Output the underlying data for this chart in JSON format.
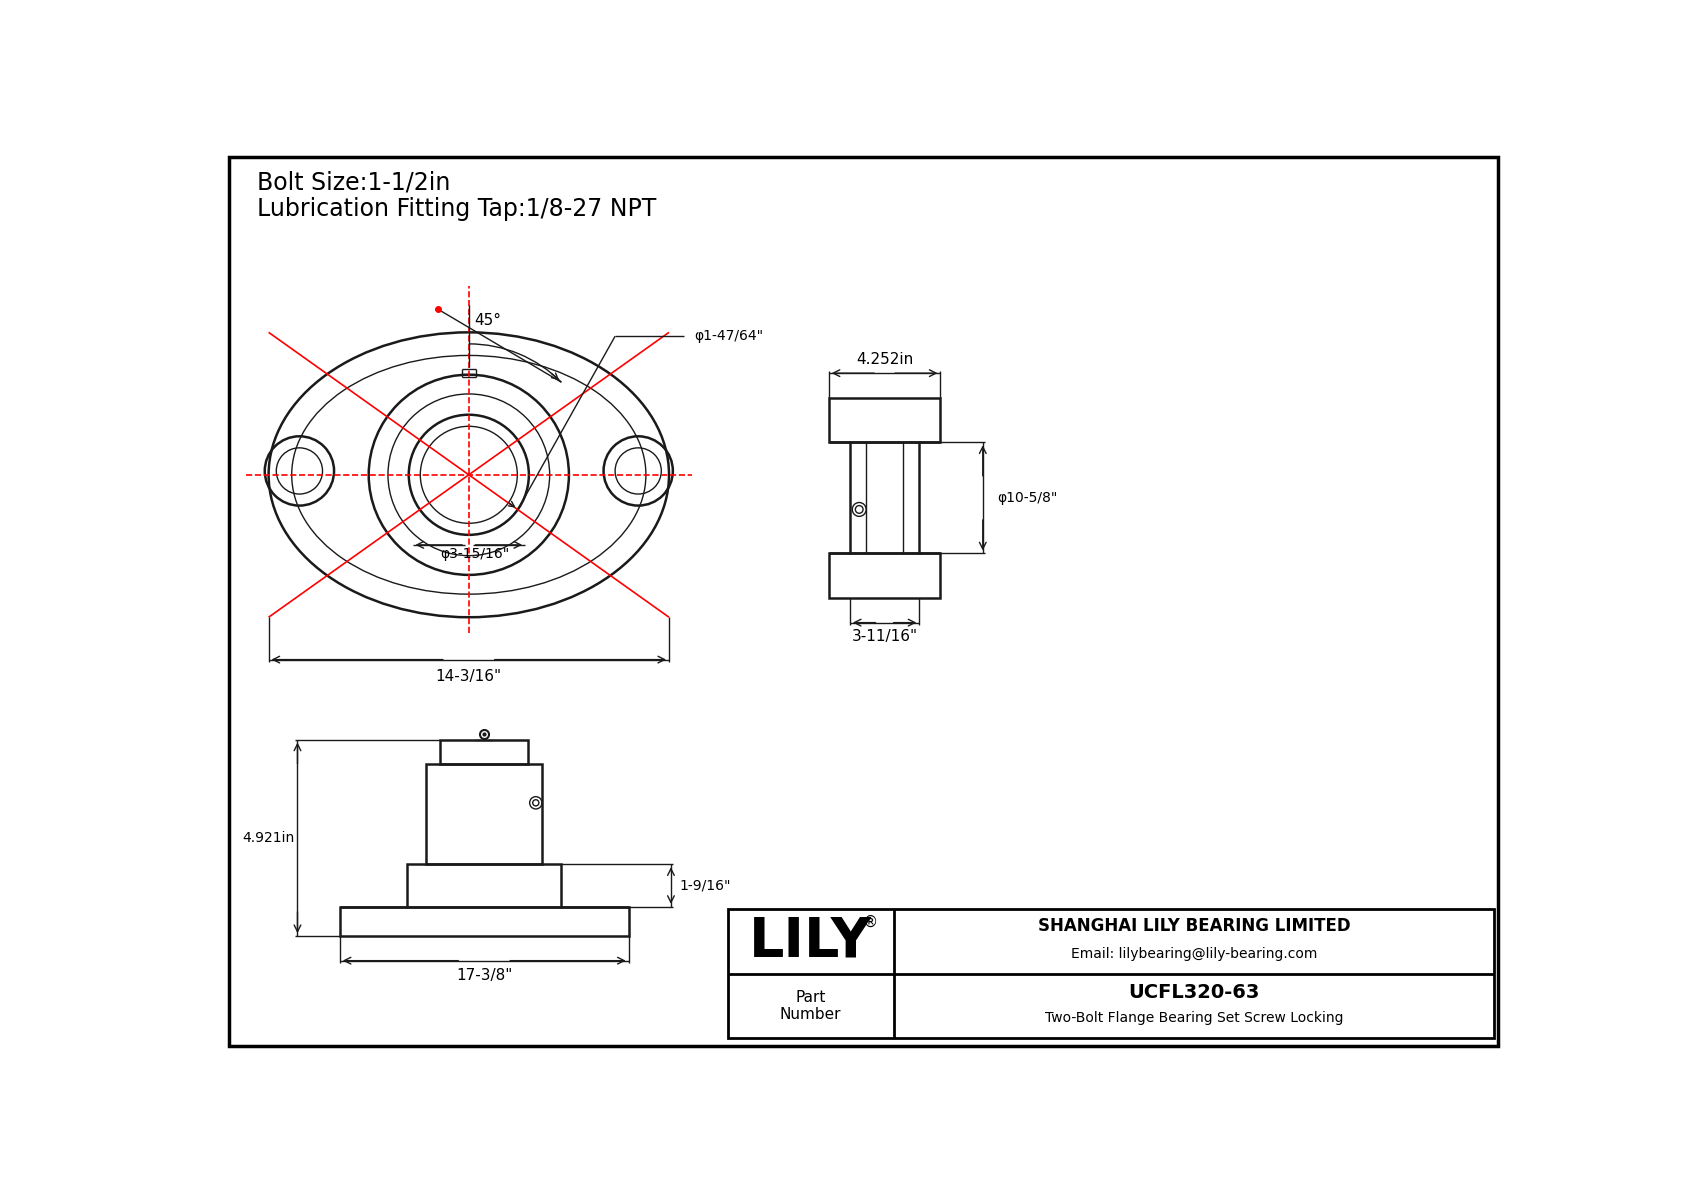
{
  "title_line1": "Bolt Size:1-1/2in",
  "title_line2": "Lubrication Fitting Tap:1/8-27 NPT",
  "bg_color": "#ffffff",
  "line_color": "#1a1a1a",
  "dim_color": "#1a1a1a",
  "red_color": "#ff0000",
  "company": "SHANGHAI LILY BEARING LIMITED",
  "email": "Email: lilybearing@lily-bearing.com",
  "part_number": "UCFL320-63",
  "part_desc": "Two-Bolt Flange Bearing Set Screw Locking",
  "dim_45": "45°",
  "dim_bore": "φ1-47/64\"",
  "dim_od": "φ3-15/16\"",
  "dim_width": "14-3/16\"",
  "dim_side_width": "4.252in",
  "dim_side_od": "φ10-5/8\"",
  "dim_side_depth": "3-11/16\"",
  "dim_front_height": "4.921in",
  "dim_front_width": "17-3/8\"",
  "dim_front_right": "1-9/16\""
}
